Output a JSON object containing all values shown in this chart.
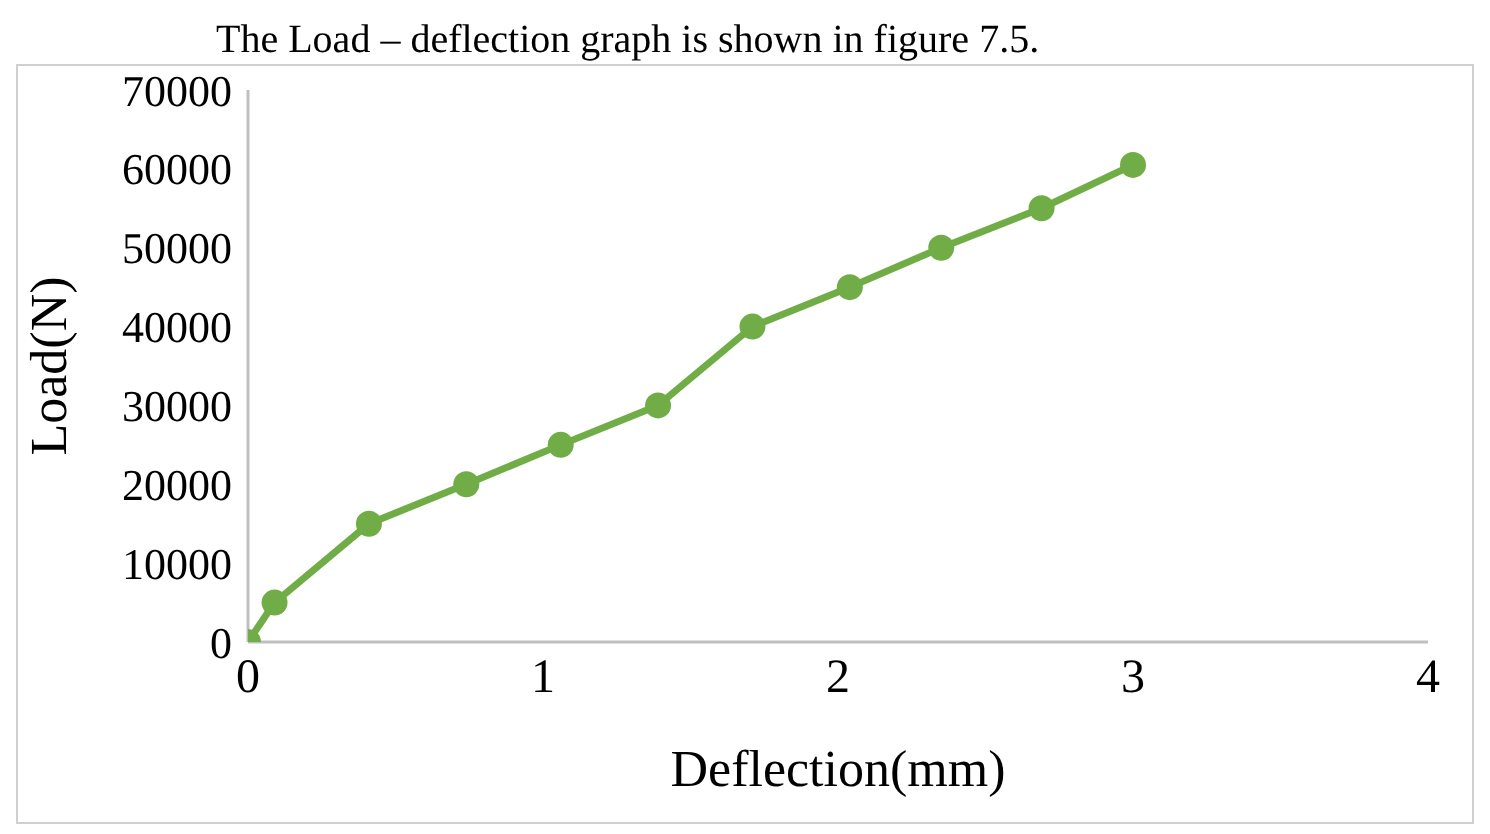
{
  "chart_data": {
    "type": "line",
    "xlabel": "Deflection(mm)",
    "ylabel": "Load(N)",
    "annotations": [
      "The Load – deflection graph is shown in figure 7.5."
    ],
    "x": [
      0,
      0.09,
      0.41,
      0.74,
      1.06,
      1.39,
      1.71,
      2.04,
      2.35,
      2.69,
      3.0
    ],
    "series": [
      {
        "color": "#70ad47",
        "values": [
          0,
          5000,
          15000,
          20000,
          25000,
          30000,
          40000,
          45000,
          50000,
          55000,
          60500
        ]
      }
    ],
    "xlim": [
      0,
      4
    ],
    "xticks": [
      0,
      1,
      2,
      3,
      4
    ],
    "ylim": [
      0,
      70000
    ],
    "yticks": [
      0,
      10000,
      20000,
      30000,
      40000,
      50000,
      60000,
      70000
    ],
    "grid": false,
    "legend": false,
    "marker": "circle",
    "line_style": "solid"
  }
}
